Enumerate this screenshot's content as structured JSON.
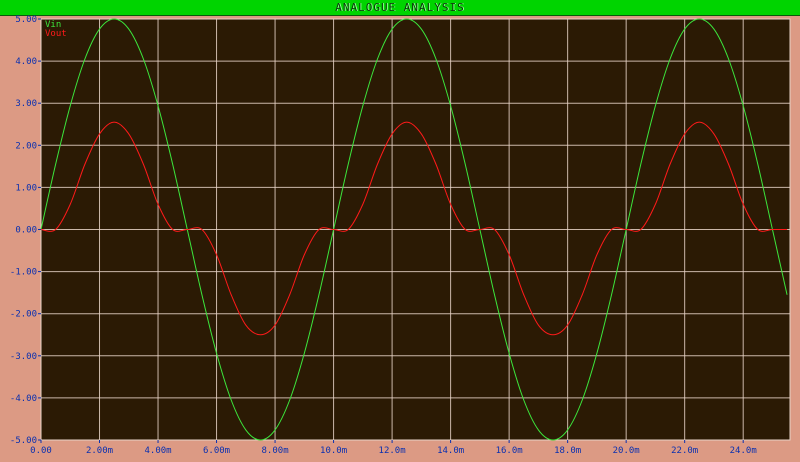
{
  "window": {
    "title": "ANALOGUE ANALYSIS"
  },
  "colors": {
    "frame": "#dc9a84",
    "plot_background": "#2b1a04",
    "grid": "#e8d4c8",
    "title_bar": "#00d400",
    "tick_text": "#0a30b0"
  },
  "chart_data": {
    "type": "line",
    "x_unit": "s",
    "xlim": [
      0,
      0.0256
    ],
    "ylim": [
      -5.0,
      5.0
    ],
    "x_ticks": [
      0,
      0.002,
      0.004,
      0.006,
      0.008,
      0.01,
      0.012,
      0.014,
      0.016,
      0.018,
      0.02,
      0.022,
      0.024
    ],
    "x_tick_labels": [
      "0.00",
      "2.00m",
      "4.00m",
      "6.00m",
      "8.00m",
      "10.0m",
      "12.0m",
      "14.0m",
      "16.0m",
      "18.0m",
      "20.0m",
      "22.0m",
      "24.0m"
    ],
    "y_ticks": [
      5,
      4,
      3,
      2,
      1,
      0,
      -1,
      -2,
      -3,
      -4,
      -5
    ],
    "y_tick_labels": [
      "5.00",
      "4.00",
      "3.00",
      "2.00",
      "1.00",
      "0.00",
      "-1.00",
      "-2.00",
      "-3.00",
      "-4.00",
      "-5.00"
    ],
    "grid": true,
    "legend_position": "top-left",
    "series": [
      {
        "name": "Vin",
        "color": "#3ce63c",
        "x": [
          0,
          0.0005,
          0.001,
          0.0015,
          0.002,
          0.0025,
          0.003,
          0.0035,
          0.004,
          0.0045,
          0.005,
          0.0055,
          0.006,
          0.0065,
          0.007,
          0.0075,
          0.008,
          0.0085,
          0.009,
          0.0095,
          0.01,
          0.0105,
          0.011,
          0.0115,
          0.012,
          0.0125,
          0.013,
          0.0135,
          0.014,
          0.0145,
          0.015,
          0.0155,
          0.016,
          0.0165,
          0.017,
          0.0175,
          0.018,
          0.0185,
          0.019,
          0.0195,
          0.02,
          0.0205,
          0.021,
          0.0215,
          0.022,
          0.0225,
          0.023,
          0.0235,
          0.024,
          0.0245,
          0.025,
          0.0255
        ],
        "y": [
          0.0,
          1.55,
          2.94,
          4.05,
          4.76,
          5.0,
          4.76,
          4.05,
          2.94,
          1.55,
          0.0,
          -1.55,
          -2.94,
          -4.05,
          -4.76,
          -5.0,
          -4.76,
          -4.05,
          -2.94,
          -1.55,
          0.0,
          1.55,
          2.94,
          4.05,
          4.76,
          5.0,
          4.76,
          4.05,
          2.94,
          1.55,
          0.0,
          -1.55,
          -2.94,
          -4.05,
          -4.76,
          -5.0,
          -4.76,
          -4.05,
          -2.94,
          -1.55,
          0.0,
          1.55,
          2.94,
          4.05,
          4.76,
          5.0,
          4.76,
          4.05,
          2.94,
          1.55,
          0.0,
          -1.55
        ]
      },
      {
        "name": "Vout",
        "color": "#ff1a1a",
        "x": [
          0,
          0.0005,
          0.001,
          0.0015,
          0.002,
          0.0025,
          0.003,
          0.0035,
          0.004,
          0.0045,
          0.005,
          0.0055,
          0.006,
          0.0065,
          0.007,
          0.0075,
          0.008,
          0.0085,
          0.009,
          0.0095,
          0.01,
          0.0105,
          0.011,
          0.0115,
          0.012,
          0.0125,
          0.013,
          0.0135,
          0.014,
          0.0145,
          0.015,
          0.0155,
          0.016,
          0.0165,
          0.017,
          0.0175,
          0.018,
          0.0185,
          0.019,
          0.0195,
          0.02,
          0.0205,
          0.021,
          0.0215,
          0.022,
          0.0225,
          0.023,
          0.0235,
          0.024,
          0.0245,
          0.025,
          0.0255
        ],
        "y": [
          0.0,
          0.0,
          0.6,
          1.55,
          2.27,
          2.55,
          2.27,
          1.55,
          0.6,
          0.0,
          0.0,
          0.0,
          -0.6,
          -1.55,
          -2.27,
          -2.5,
          -2.27,
          -1.55,
          -0.6,
          0.0,
          0.0,
          0.0,
          0.6,
          1.55,
          2.27,
          2.55,
          2.27,
          1.55,
          0.6,
          0.0,
          0.0,
          0.0,
          -0.6,
          -1.55,
          -2.27,
          -2.5,
          -2.27,
          -1.55,
          -0.6,
          0.0,
          0.0,
          0.0,
          0.6,
          1.55,
          2.27,
          2.55,
          2.27,
          1.55,
          0.6,
          0.0,
          0.0,
          0.0
        ]
      }
    ]
  }
}
